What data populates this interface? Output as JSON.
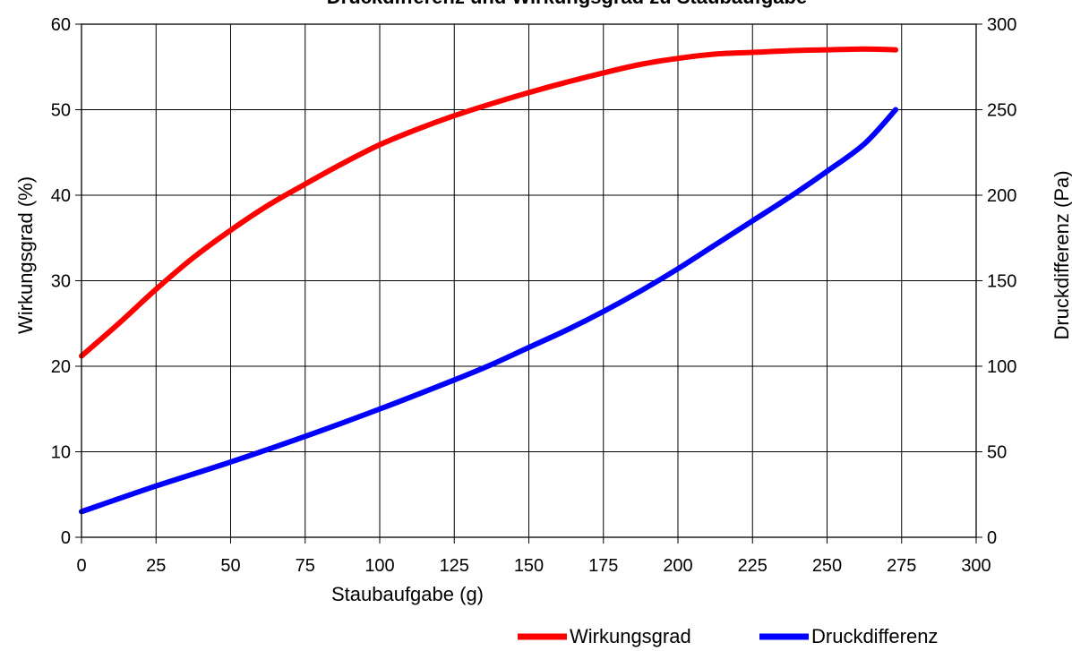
{
  "chart_data": {
    "type": "line",
    "title": "Druckdifferenz und Wirkungsgrad zu Staubaufgabe",
    "xlabel": "Staubaufgabe (g)",
    "ylabel_left": "Wirkungsgrad (%)",
    "ylabel_right": "Druckdifferenz (Pa)",
    "xlim": [
      0,
      300
    ],
    "ylim_left": [
      0,
      60
    ],
    "ylim_right": [
      0,
      300
    ],
    "x_ticks": [
      "0",
      "25",
      "50",
      "75",
      "100",
      "125",
      "150",
      "175",
      "200",
      "225",
      "250",
      "275",
      "300"
    ],
    "y_ticks_left": [
      "0",
      "10",
      "20",
      "30",
      "40",
      "50",
      "60"
    ],
    "y_ticks_right": [
      "0",
      "50",
      "100",
      "150",
      "200",
      "250",
      "300"
    ],
    "grid": true,
    "legend_position": "bottom-right",
    "series": [
      {
        "name": "Wirkungsgrad",
        "axis": "left",
        "color": "#ff0000",
        "x": [
          0,
          12.5,
          25,
          37.5,
          50,
          62.5,
          75,
          87.5,
          100,
          112.5,
          125,
          137.5,
          150,
          162.5,
          175,
          187.5,
          200,
          212.5,
          225,
          237.5,
          250,
          262.5,
          273
        ],
        "y": [
          21.2,
          25,
          29,
          32.7,
          35.9,
          38.8,
          41.3,
          43.7,
          45.9,
          47.7,
          49.3,
          50.7,
          52,
          53.2,
          54.3,
          55.3,
          56,
          56.5,
          56.7,
          56.9,
          57,
          57.1,
          57
        ]
      },
      {
        "name": "Druckdifferenz",
        "axis": "right",
        "color": "#0000ff",
        "x": [
          0,
          25,
          50,
          75,
          100,
          125,
          137.5,
          150,
          162.5,
          175,
          187.5,
          200,
          212.5,
          225,
          237.5,
          250,
          262.5,
          273
        ],
        "y": [
          15,
          30,
          44,
          59,
          75,
          92,
          101,
          111,
          121,
          132,
          144,
          157,
          171,
          185,
          199,
          214,
          230,
          250
        ]
      }
    ]
  }
}
